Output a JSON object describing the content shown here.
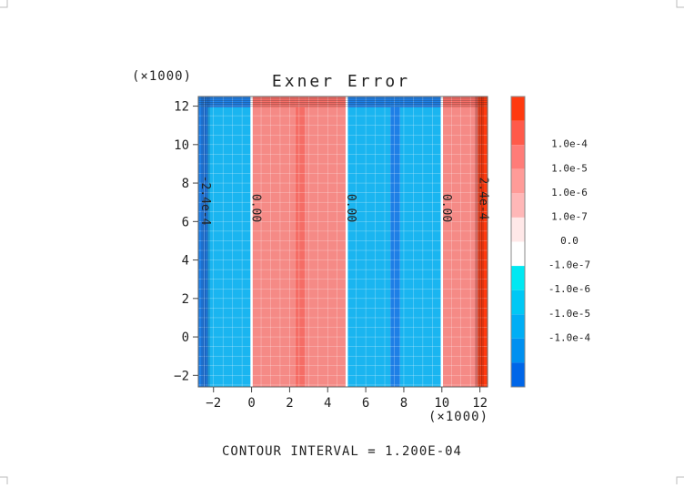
{
  "chart_data": {
    "type": "heatmap",
    "title": "Exner Error",
    "x_multiplier": "(×1000)",
    "y_multiplier": "(×1000)",
    "xlim": [
      -2.8,
      12.4
    ],
    "ylim": [
      -2.6,
      12.5
    ],
    "x_ticks": [
      -2,
      0,
      2,
      4,
      6,
      8,
      10,
      12
    ],
    "y_ticks": [
      -2,
      0,
      2,
      4,
      6,
      8,
      10,
      12
    ],
    "x_tick_labels": [
      "−2",
      "0",
      "2",
      "4",
      "6",
      "8",
      "10",
      "12"
    ],
    "y_tick_labels": [
      "−2",
      "0",
      "2",
      "4",
      "6",
      "8",
      "10",
      "12"
    ],
    "grid": true,
    "fill_bands": [
      {
        "x0": -2.8,
        "x1": -2.3,
        "level": "-1.0e-4"
      },
      {
        "x0": -2.3,
        "x1": 0.0,
        "level": "-1.0e-5"
      },
      {
        "x0": 0.0,
        "x1": 2.3,
        "level": "1.0e-6"
      },
      {
        "x0": 2.3,
        "x1": 2.8,
        "level": "1.0e-5"
      },
      {
        "x0": 2.8,
        "x1": 5.0,
        "level": "1.0e-6"
      },
      {
        "x0": 5.0,
        "x1": 7.3,
        "level": "-1.0e-5"
      },
      {
        "x0": 7.3,
        "x1": 7.8,
        "level": "-1.0e-4"
      },
      {
        "x0": 7.8,
        "x1": 10.0,
        "level": "-1.0e-5"
      },
      {
        "x0": 10.0,
        "x1": 11.9,
        "level": "1.0e-6"
      },
      {
        "x0": 11.9,
        "x1": 12.4,
        "level": "1.0e-4"
      }
    ],
    "contour_labels": [
      {
        "x": -2.6,
        "y": 7.1,
        "text": "-2.4e-4"
      },
      {
        "x": 0.05,
        "y": 6.7,
        "text": "0.00"
      },
      {
        "x": 5.05,
        "y": 6.7,
        "text": "0.00"
      },
      {
        "x": 10.05,
        "y": 6.7,
        "text": "0.00"
      },
      {
        "x": 12.0,
        "y": 7.2,
        "text": "2.4e-4"
      }
    ],
    "colorbar": {
      "levels": [
        {
          "label": "",
          "color": "#ff3a0f"
        },
        {
          "label": "1.0e-4",
          "color": "#ff5a4a"
        },
        {
          "label": "1.0e-5",
          "color": "#ff7c78"
        },
        {
          "label": "1.0e-6",
          "color": "#ff9b98"
        },
        {
          "label": "1.0e-7",
          "color": "#ffb7b7"
        },
        {
          "label": "0.0",
          "color": "#ffe8e8"
        },
        {
          "label": "-1.0e-7",
          "color": "#ffffff"
        },
        {
          "label": "-1.0e-6",
          "color": "#00e8f2"
        },
        {
          "label": "-1.0e-5",
          "color": "#00c8f5"
        },
        {
          "label": "-1.0e-4",
          "color": "#00aef5"
        },
        {
          "label": "",
          "color": "#0090f0"
        },
        {
          "label": "",
          "color": "#0066e8"
        }
      ]
    },
    "colors": {
      "-1.0e-4": "#1e7fe6",
      "-1.0e-5": "#1ab5f0",
      "1.0e-6": "#f58a86",
      "1.0e-5": "#f56d66",
      "1.0e-4": "#ff3a0f"
    },
    "footer": "CONTOUR INTERVAL = 1.200E-04"
  }
}
